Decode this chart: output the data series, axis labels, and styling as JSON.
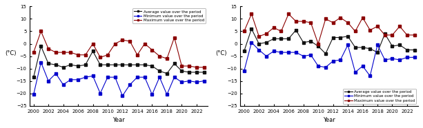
{
  "years": [
    2000,
    2001,
    2002,
    2003,
    2004,
    2005,
    2006,
    2007,
    2008,
    2009,
    2010,
    2011,
    2012,
    2013,
    2014,
    2015,
    2016,
    2017,
    2018,
    2019,
    2020,
    2021,
    2022,
    2023
  ],
  "left": {
    "avg": [
      -13.5,
      -1.0,
      -8.0,
      -8.5,
      -9.5,
      -8.5,
      -9.0,
      -8.5,
      -3.0,
      -8.5,
      -8.5,
      -8.5,
      -8.5,
      -8.5,
      -8.5,
      -8.5,
      -9.0,
      -11.0,
      -12.0,
      -8.0,
      -11.0,
      -11.5,
      -11.5,
      -11.5
    ],
    "min": [
      -20.5,
      -7.5,
      -15.0,
      -12.0,
      -16.5,
      -14.5,
      -14.5,
      -13.5,
      -13.0,
      -20.0,
      -13.5,
      -13.5,
      -21.0,
      -16.5,
      -13.5,
      -13.5,
      -20.5,
      -13.5,
      -20.5,
      -13.5,
      -15.5,
      -15.0,
      -15.5,
      -15.0
    ],
    "max": [
      -3.5,
      5.0,
      -2.0,
      -3.5,
      -3.5,
      -3.5,
      -4.5,
      -4.5,
      0.0,
      -5.5,
      -4.5,
      0.0,
      1.5,
      1.0,
      -4.5,
      0.0,
      -2.5,
      -5.0,
      -6.0,
      2.5,
      -9.0,
      -9.0,
      -9.5,
      -9.5
    ]
  },
  "right": {
    "avg": [
      -3.0,
      6.0,
      0.0,
      0.5,
      2.0,
      2.0,
      2.0,
      5.5,
      0.5,
      1.0,
      -1.0,
      -4.0,
      2.5,
      2.5,
      3.0,
      -1.5,
      -1.5,
      -2.0,
      -3.5,
      4.0,
      -1.0,
      -0.5,
      -2.5,
      -2.5
    ],
    "min": [
      -11.0,
      0.5,
      -2.5,
      -5.0,
      -3.0,
      -3.5,
      -3.5,
      -3.5,
      -5.0,
      -4.5,
      -9.0,
      -9.5,
      -7.0,
      -6.5,
      -0.5,
      -11.5,
      -9.0,
      -13.0,
      -0.5,
      -6.5,
      -6.0,
      -6.5,
      -5.5,
      -5.5
    ],
    "max": [
      5.0,
      12.0,
      3.0,
      4.0,
      6.5,
      5.0,
      12.0,
      9.0,
      9.0,
      8.5,
      0.0,
      10.0,
      8.5,
      10.5,
      8.5,
      5.0,
      10.5,
      5.5,
      7.0,
      3.5,
      3.5,
      7.0,
      3.5,
      3.5
    ]
  },
  "ylabel": "(°C)",
  "xlabel": "Year",
  "ylim": [
    -25,
    15
  ],
  "yticks": [
    -25,
    -20,
    -15,
    -10,
    -5,
    0,
    5,
    10,
    15
  ],
  "avg_color": "#111111",
  "min_color": "#0000CC",
  "max_color": "#8B0000",
  "avg_label": "Average value over the period",
  "min_label": "Minimum value over the period",
  "max_label": "Maximum value over the period",
  "left_legend_loc": "upper right",
  "right_legend_loc": "lower right"
}
